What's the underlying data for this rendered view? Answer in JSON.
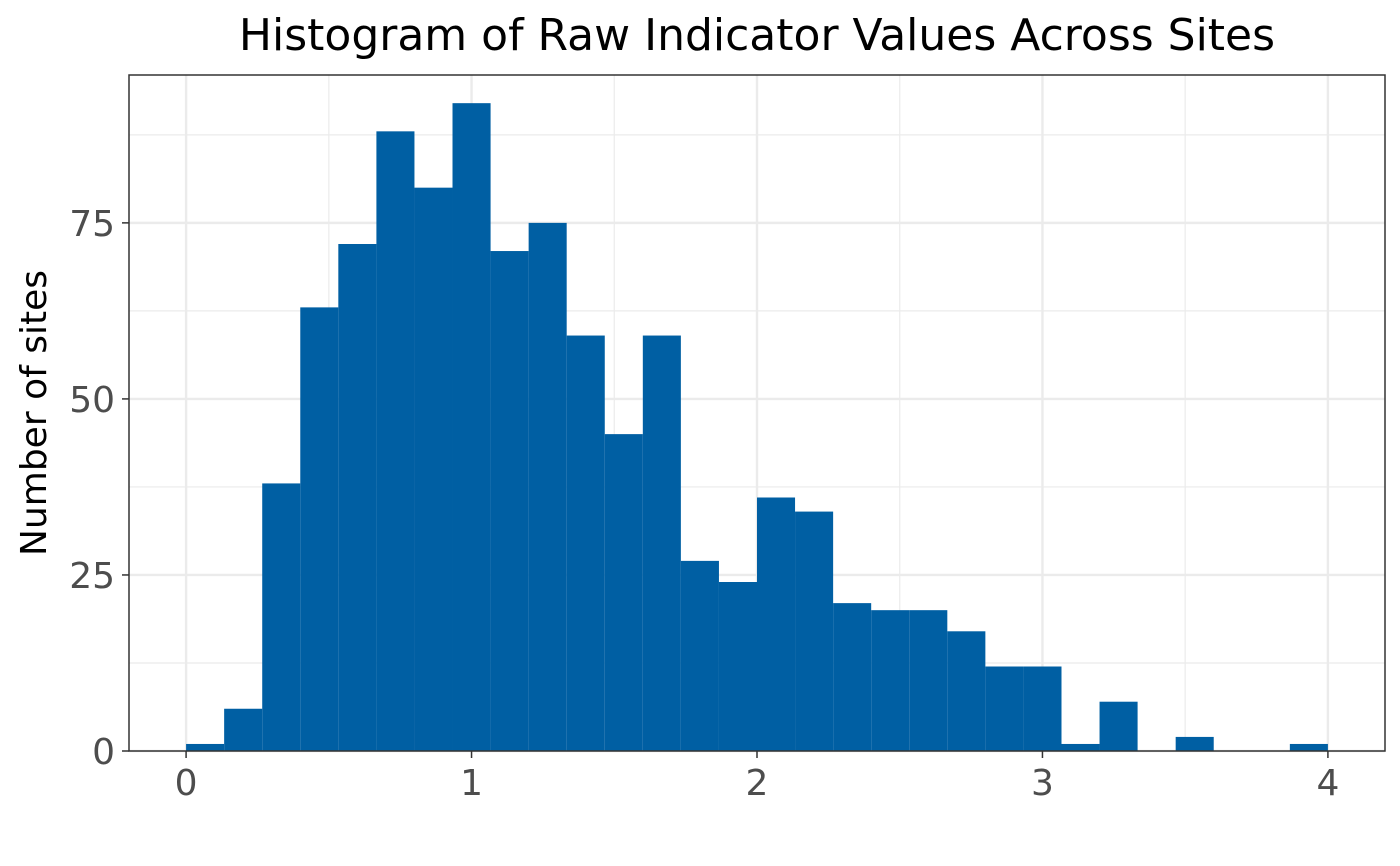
{
  "chart_data": {
    "type": "bar",
    "title": "Histogram of Raw Indicator Values Across Sites",
    "xlabel": "",
    "ylabel": "Number of sites",
    "x_ticks": [
      "0",
      "1",
      "2",
      "3",
      "4"
    ],
    "y_ticks": [
      "0",
      "25",
      "50",
      "75"
    ],
    "xlim": [
      -0.2,
      4.2
    ],
    "ylim": [
      0,
      96
    ],
    "bin_width": 0.1333,
    "bins": [
      {
        "x0": 0.0,
        "x1": 0.1333,
        "count": 1
      },
      {
        "x0": 0.1333,
        "x1": 0.2667,
        "count": 6
      },
      {
        "x0": 0.2667,
        "x1": 0.4,
        "count": 38
      },
      {
        "x0": 0.4,
        "x1": 0.5333,
        "count": 63
      },
      {
        "x0": 0.5333,
        "x1": 0.6667,
        "count": 72
      },
      {
        "x0": 0.6667,
        "x1": 0.8,
        "count": 88
      },
      {
        "x0": 0.8,
        "x1": 0.9333,
        "count": 80
      },
      {
        "x0": 0.9333,
        "x1": 1.0667,
        "count": 92
      },
      {
        "x0": 1.0667,
        "x1": 1.2,
        "count": 71
      },
      {
        "x0": 1.2,
        "x1": 1.3333,
        "count": 75
      },
      {
        "x0": 1.3333,
        "x1": 1.4667,
        "count": 59
      },
      {
        "x0": 1.4667,
        "x1": 1.6,
        "count": 45
      },
      {
        "x0": 1.6,
        "x1": 1.7333,
        "count": 59
      },
      {
        "x0": 1.7333,
        "x1": 1.8667,
        "count": 27
      },
      {
        "x0": 1.8667,
        "x1": 2.0,
        "count": 24
      },
      {
        "x0": 2.0,
        "x1": 2.1333,
        "count": 36
      },
      {
        "x0": 2.1333,
        "x1": 2.2667,
        "count": 34
      },
      {
        "x0": 2.2667,
        "x1": 2.4,
        "count": 21
      },
      {
        "x0": 2.4,
        "x1": 2.5333,
        "count": 20
      },
      {
        "x0": 2.5333,
        "x1": 2.6667,
        "count": 20
      },
      {
        "x0": 2.6667,
        "x1": 2.8,
        "count": 17
      },
      {
        "x0": 2.8,
        "x1": 2.9333,
        "count": 12
      },
      {
        "x0": 2.9333,
        "x1": 3.0667,
        "count": 12
      },
      {
        "x0": 3.0667,
        "x1": 3.2,
        "count": 1
      },
      {
        "x0": 3.2,
        "x1": 3.3333,
        "count": 7
      },
      {
        "x0": 3.3333,
        "x1": 3.4667,
        "count": 0
      },
      {
        "x0": 3.4667,
        "x1": 3.6,
        "count": 2
      },
      {
        "x0": 3.6,
        "x1": 3.7333,
        "count": 0
      },
      {
        "x0": 3.7333,
        "x1": 3.8667,
        "count": 0
      },
      {
        "x0": 3.8667,
        "x1": 4.0,
        "count": 1
      }
    ],
    "grid": true,
    "bar_color": "#005fa3",
    "grid_color": "#ebebeb",
    "legend": "none"
  }
}
